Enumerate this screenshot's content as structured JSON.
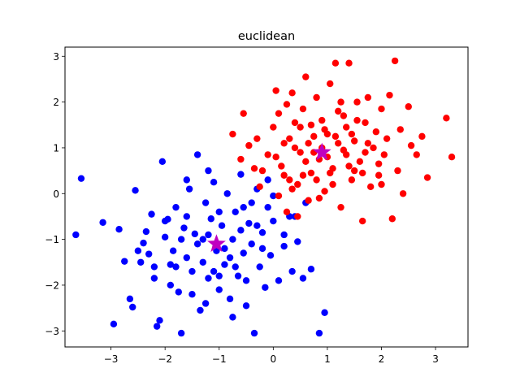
{
  "chart_data": {
    "type": "scatter",
    "title": "euclidean",
    "xlabel": "",
    "ylabel": "",
    "xlim": [
      -3.85,
      3.6
    ],
    "ylim": [
      -3.35,
      3.2
    ],
    "xticks": [
      -3,
      -2,
      -1,
      0,
      1,
      2,
      3
    ],
    "yticks": [
      -3,
      -2,
      -1,
      0,
      1,
      2,
      3
    ],
    "xtick_labels": [
      "−3",
      "−2",
      "−1",
      "0",
      "1",
      "2",
      "3"
    ],
    "ytick_labels": [
      "−3",
      "−2",
      "−1",
      "0",
      "1",
      "2",
      "3"
    ],
    "grid": false,
    "series": [
      {
        "color": "#0000ff",
        "marker": "circle",
        "points": [
          [
            -3.55,
            0.33
          ],
          [
            -3.65,
            -0.9
          ],
          [
            -3.15,
            -0.63
          ],
          [
            -2.85,
            -0.78
          ],
          [
            -2.75,
            -1.48
          ],
          [
            -2.65,
            -2.3
          ],
          [
            -2.6,
            -2.48
          ],
          [
            -2.55,
            0.07
          ],
          [
            -2.45,
            -1.5
          ],
          [
            -2.4,
            -1.08
          ],
          [
            -2.35,
            -0.83
          ],
          [
            -2.3,
            -1.32
          ],
          [
            -2.25,
            -0.45
          ],
          [
            -2.2,
            -1.85
          ],
          [
            -2.15,
            -2.9
          ],
          [
            -2.1,
            -2.77
          ],
          [
            -2.05,
            0.7
          ],
          [
            -2.0,
            -0.95
          ],
          [
            -1.95,
            -0.56
          ],
          [
            -1.9,
            -1.55
          ],
          [
            -1.85,
            -1.25
          ],
          [
            -1.8,
            -0.3
          ],
          [
            -1.75,
            -2.15
          ],
          [
            -1.7,
            -3.05
          ],
          [
            -1.65,
            -0.75
          ],
          [
            -1.6,
            -1.4
          ],
          [
            -1.55,
            0.1
          ],
          [
            -1.5,
            -1.7
          ],
          [
            -1.45,
            -0.88
          ],
          [
            -1.4,
            0.85
          ],
          [
            -1.35,
            -2.55
          ],
          [
            -1.3,
            -1.0
          ],
          [
            -1.25,
            -0.2
          ],
          [
            -1.2,
            -1.85
          ],
          [
            -1.15,
            -0.55
          ],
          [
            -1.1,
            0.25
          ],
          [
            -1.05,
            -1.25
          ],
          [
            -1.0,
            -2.1
          ],
          [
            -0.95,
            -0.7
          ],
          [
            -0.9,
            -1.55
          ],
          [
            -0.85,
            0.0
          ],
          [
            -0.8,
            -2.3
          ],
          [
            -0.75,
            -1.0
          ],
          [
            -0.7,
            -0.4
          ],
          [
            -0.65,
            -1.8
          ],
          [
            -0.6,
            0.42
          ],
          [
            -0.55,
            -1.3
          ],
          [
            -0.5,
            -2.45
          ],
          [
            -0.45,
            -0.65
          ],
          [
            -0.4,
            -1.1
          ],
          [
            -0.35,
            -3.05
          ],
          [
            -0.3,
            0.1
          ],
          [
            -0.25,
            -1.6
          ],
          [
            -0.2,
            -0.85
          ],
          [
            -0.15,
            -2.05
          ],
          [
            -0.1,
            -0.3
          ],
          [
            -0.05,
            -1.35
          ],
          [
            0.0,
            -0.05
          ],
          [
            0.1,
            -1.9
          ],
          [
            0.2,
            -1.15
          ],
          [
            0.3,
            -0.5
          ],
          [
            0.35,
            -1.7
          ],
          [
            0.45,
            -1.05
          ],
          [
            0.55,
            -1.85
          ],
          [
            0.7,
            -1.65
          ],
          [
            0.85,
            -3.05
          ],
          [
            0.95,
            -2.6
          ],
          [
            -2.95,
            -2.85
          ],
          [
            -2.5,
            -1.25
          ],
          [
            -2.0,
            -0.6
          ],
          [
            -1.8,
            -1.6
          ],
          [
            -1.6,
            -0.5
          ],
          [
            -1.4,
            -1.1
          ],
          [
            -1.2,
            -0.9
          ],
          [
            -1.0,
            -0.4
          ],
          [
            -0.8,
            -1.4
          ],
          [
            -0.6,
            -0.8
          ],
          [
            -0.4,
            -0.2
          ],
          [
            -0.2,
            -1.2
          ],
          [
            0.0,
            -0.6
          ],
          [
            0.2,
            -0.9
          ],
          [
            -1.3,
            -1.5
          ],
          [
            -1.1,
            -1.7
          ],
          [
            -0.9,
            -1.2
          ],
          [
            -0.7,
            -1.6
          ],
          [
            -0.5,
            -1.9
          ],
          [
            -1.5,
            -2.2
          ],
          [
            -1.25,
            -2.4
          ],
          [
            -1.0,
            -1.8
          ],
          [
            -0.75,
            -2.7
          ],
          [
            -0.55,
            -0.3
          ],
          [
            -0.3,
            -0.7
          ],
          [
            -1.9,
            -2.0
          ],
          [
            -2.2,
            -1.6
          ],
          [
            -1.7,
            -1.0
          ],
          [
            0.6,
            -0.2
          ],
          [
            0.4,
            -0.5
          ],
          [
            -0.1,
            0.3
          ],
          [
            -1.2,
            0.5
          ],
          [
            -1.6,
            0.3
          ]
        ]
      },
      {
        "color": "#ff0000",
        "marker": "circle",
        "points": [
          [
            -0.75,
            1.3
          ],
          [
            -0.55,
            1.75
          ],
          [
            -0.45,
            1.05
          ],
          [
            -0.35,
            0.55
          ],
          [
            -0.25,
            0.15
          ],
          [
            -0.1,
            0.85
          ],
          [
            0.0,
            1.45
          ],
          [
            0.05,
            2.25
          ],
          [
            0.1,
            -0.05
          ],
          [
            0.15,
            0.6
          ],
          [
            0.2,
            1.1
          ],
          [
            0.25,
            1.95
          ],
          [
            0.3,
            0.3
          ],
          [
            0.35,
            2.2
          ],
          [
            0.4,
            1.55
          ],
          [
            0.45,
            -0.5
          ],
          [
            0.5,
            0.9
          ],
          [
            0.55,
            1.85
          ],
          [
            0.6,
            2.55
          ],
          [
            0.65,
            -0.15
          ],
          [
            0.7,
            0.45
          ],
          [
            0.75,
            1.25
          ],
          [
            0.8,
            2.1
          ],
          [
            0.85,
            0.75
          ],
          [
            0.9,
            1.6
          ],
          [
            0.95,
            0.05
          ],
          [
            1.0,
            1.3
          ],
          [
            1.05,
            2.4
          ],
          [
            1.1,
            0.55
          ],
          [
            1.15,
            2.85
          ],
          [
            1.2,
            1.8
          ],
          [
            1.25,
            -0.3
          ],
          [
            1.3,
            0.95
          ],
          [
            1.35,
            1.45
          ],
          [
            1.4,
            2.85
          ],
          [
            1.45,
            0.3
          ],
          [
            1.5,
            1.15
          ],
          [
            1.55,
            2.0
          ],
          [
            1.6,
            0.7
          ],
          [
            1.65,
            -0.6
          ],
          [
            1.7,
            1.55
          ],
          [
            1.75,
            2.1
          ],
          [
            1.8,
            0.15
          ],
          [
            1.85,
            1.0
          ],
          [
            1.9,
            1.35
          ],
          [
            1.95,
            0.4
          ],
          [
            2.0,
            1.85
          ],
          [
            2.05,
            0.85
          ],
          [
            2.1,
            1.2
          ],
          [
            2.15,
            2.15
          ],
          [
            2.2,
            -0.55
          ],
          [
            2.25,
            2.9
          ],
          [
            2.3,
            0.5
          ],
          [
            2.35,
            1.4
          ],
          [
            2.4,
            0.0
          ],
          [
            2.5,
            1.9
          ],
          [
            2.55,
            1.05
          ],
          [
            2.65,
            0.85
          ],
          [
            2.75,
            1.25
          ],
          [
            2.85,
            0.35
          ],
          [
            3.2,
            1.65
          ],
          [
            3.3,
            0.8
          ],
          [
            0.25,
            -0.4
          ],
          [
            0.45,
            0.2
          ],
          [
            0.7,
            1.5
          ],
          [
            0.9,
            1.0
          ],
          [
            1.1,
            0.2
          ],
          [
            1.3,
            1.7
          ],
          [
            1.5,
            0.5
          ],
          [
            1.7,
            0.9
          ],
          [
            0.3,
            1.2
          ],
          [
            0.6,
            0.7
          ],
          [
            0.8,
            0.3
          ],
          [
            1.0,
            0.8
          ],
          [
            1.2,
            1.1
          ],
          [
            1.4,
            0.6
          ],
          [
            0.2,
            0.4
          ],
          [
            0.4,
            1.0
          ],
          [
            0.55,
            0.4
          ],
          [
            0.75,
            0.9
          ],
          [
            0.95,
            1.4
          ],
          [
            1.15,
            1.25
          ],
          [
            1.35,
            0.85
          ],
          [
            1.55,
            1.6
          ],
          [
            1.75,
            1.1
          ],
          [
            1.95,
            0.65
          ],
          [
            -0.2,
            0.5
          ],
          [
            0.05,
            0.8
          ],
          [
            0.35,
            0.1
          ],
          [
            0.65,
            1.1
          ],
          [
            0.85,
            -0.1
          ],
          [
            1.05,
            0.45
          ],
          [
            1.25,
            2.0
          ],
          [
            1.45,
            1.3
          ],
          [
            1.65,
            0.45
          ],
          [
            -0.6,
            0.75
          ],
          [
            -0.3,
            1.2
          ],
          [
            0.1,
            1.75
          ],
          [
            0.5,
            1.45
          ],
          [
            2.0,
            0.2
          ]
        ]
      },
      {
        "color": "#c000c0",
        "marker": "star",
        "points": [
          [
            -1.05,
            -1.1
          ],
          [
            0.9,
            0.9
          ]
        ]
      }
    ]
  }
}
